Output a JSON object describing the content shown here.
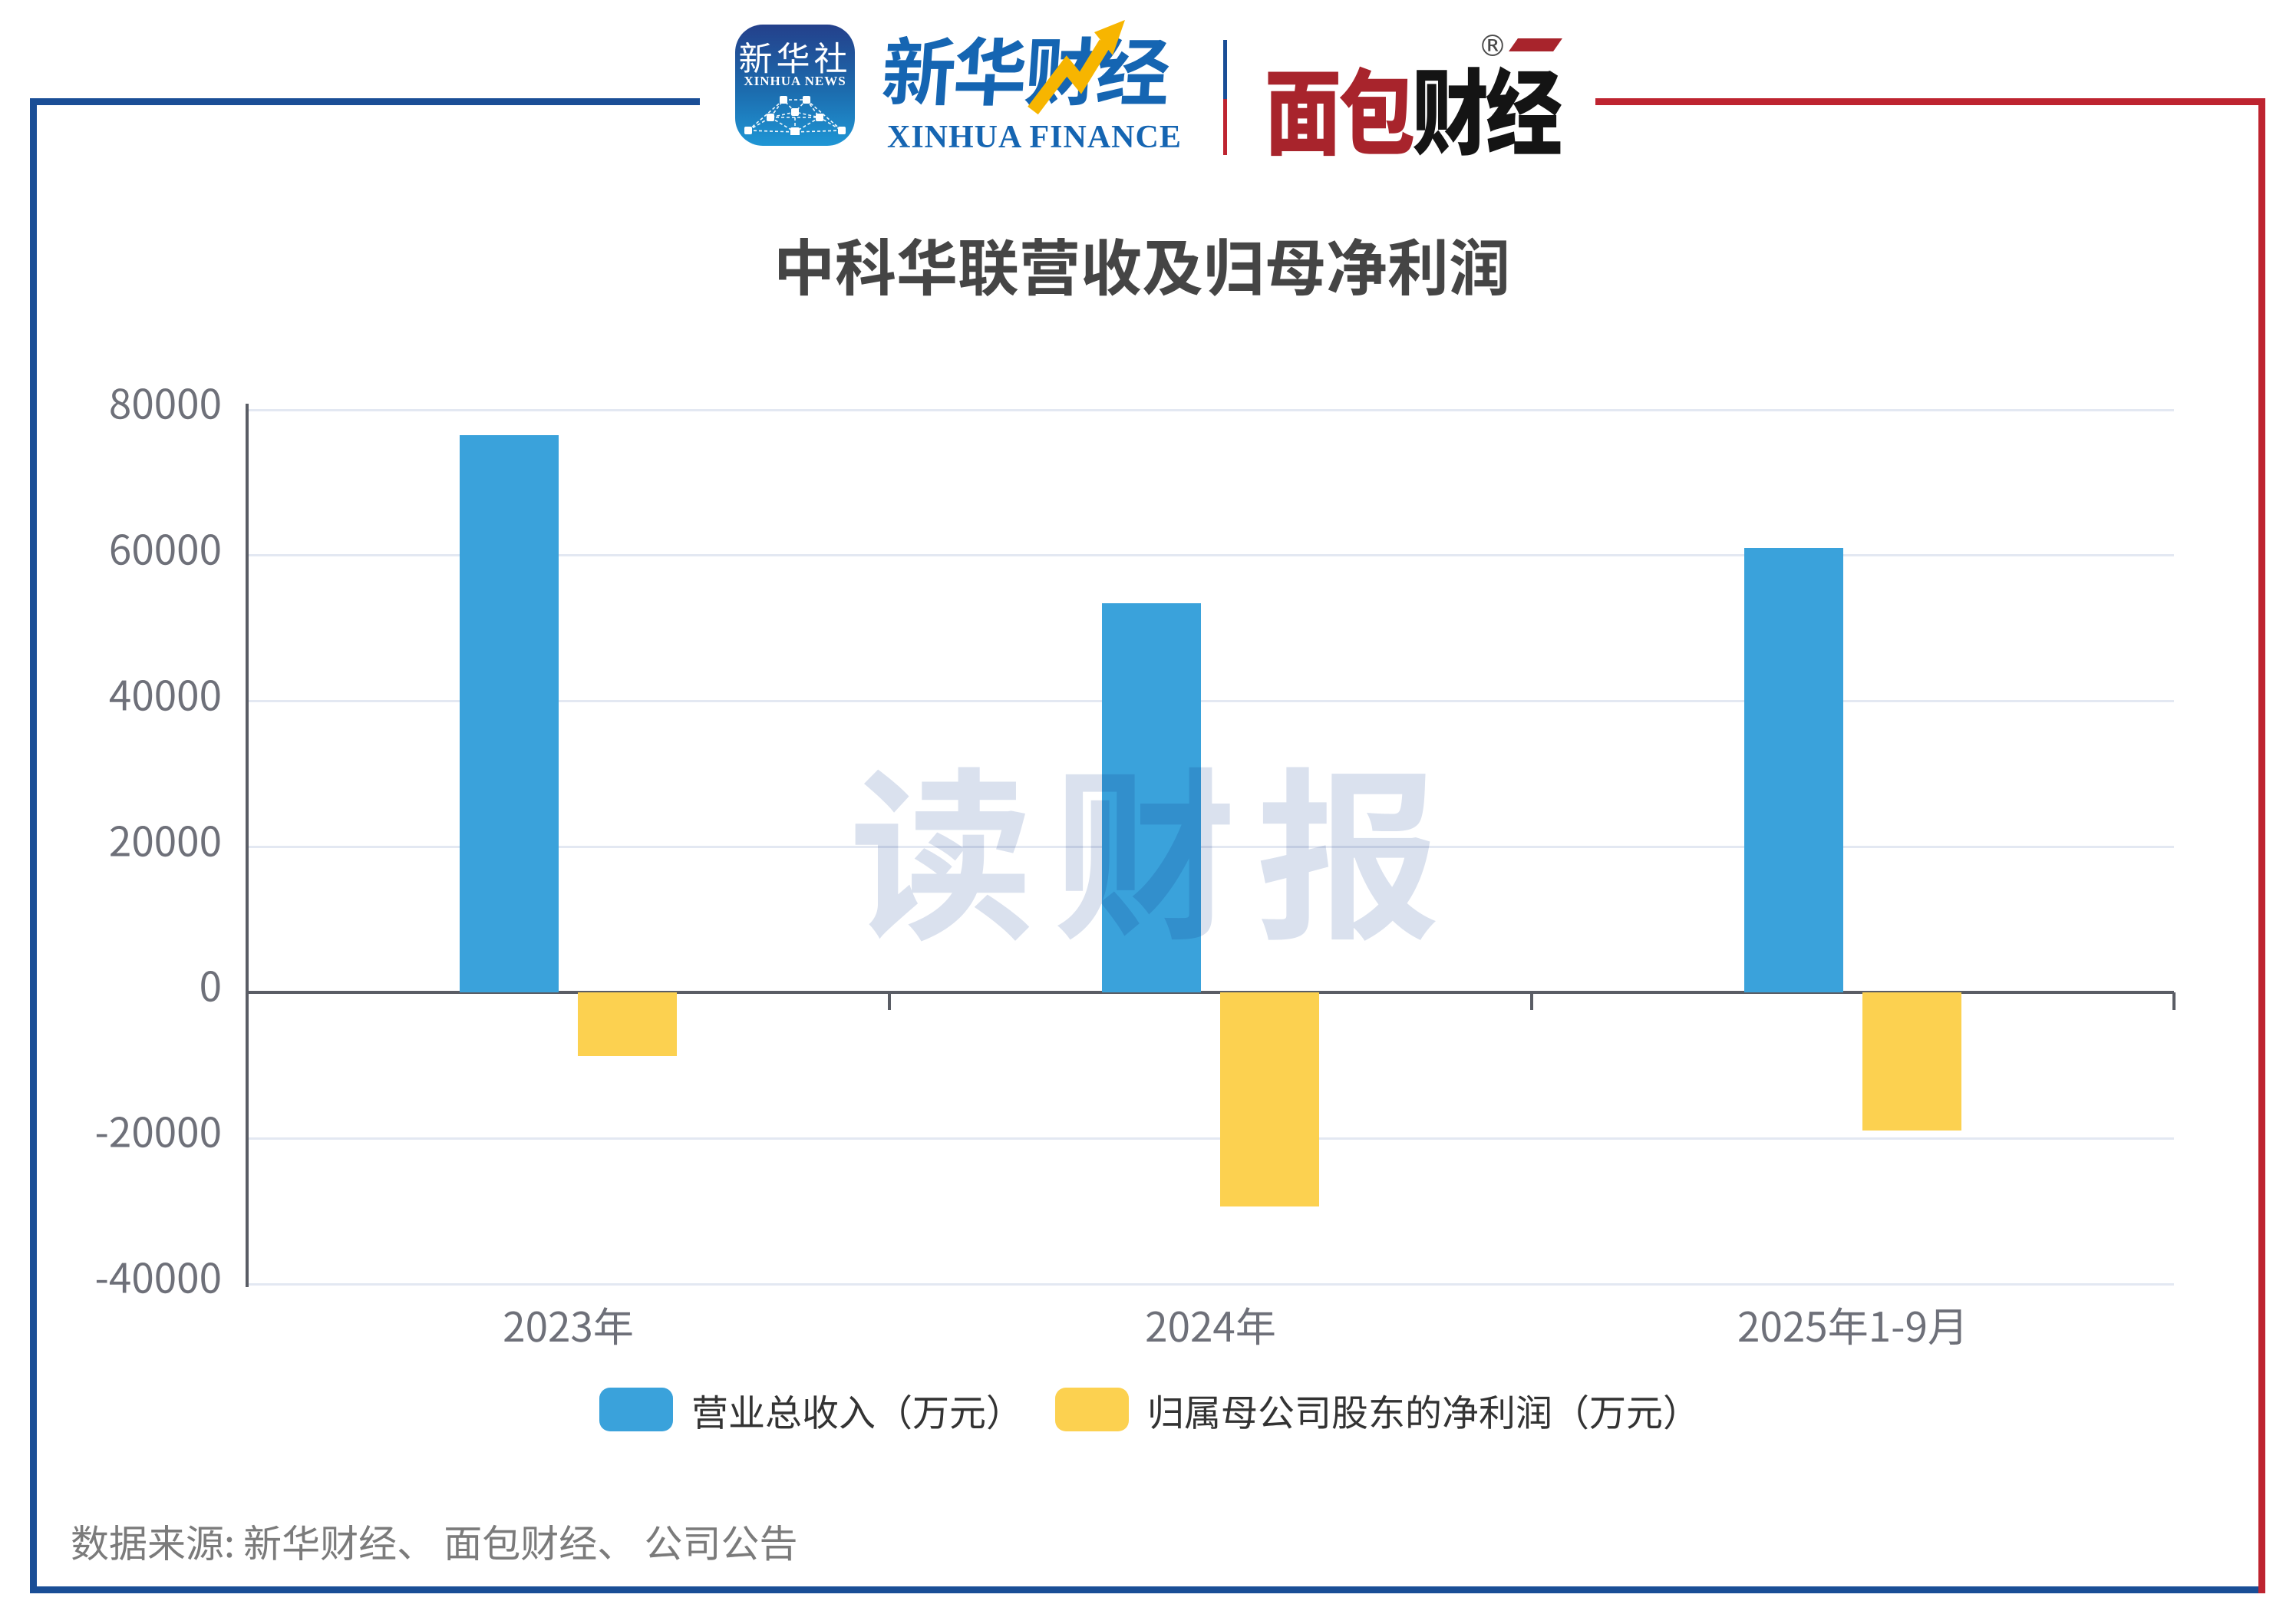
{
  "header": {
    "xinhua_news_icon": {
      "cn": "新华社",
      "en": "XINHUA NEWS"
    },
    "xinhua_finance": {
      "cn": "新华财经",
      "en": "XINHUA FINANCE"
    },
    "bread_finance": {
      "red_part": "面包",
      "black_part": "财经",
      "registered_mark": "®"
    }
  },
  "colors": {
    "frame_blue": "#1a4e96",
    "frame_red": "#be2430",
    "logo_blue": "#1565b2",
    "logo_red": "#a8242c",
    "logo_black": "#141414",
    "arrow_gold": "#f7b500",
    "revenue_bar": "#3aa2db",
    "profit_bar": "#fcd150"
  },
  "chart_data": {
    "type": "bar",
    "title": "中科华联营收及归母净利润",
    "categories": [
      "2023年",
      "2024年",
      "2025年1-9月"
    ],
    "series": [
      {
        "key": "revenue",
        "name": "营业总收入（万元）",
        "color": "#3aa2db",
        "values": [
          76500,
          53400,
          61000
        ]
      },
      {
        "key": "net-profit",
        "name": "归属母公司股东的净利润（万元）",
        "color": "#fcd150",
        "values": [
          -8700,
          -29400,
          -18900
        ]
      }
    ],
    "ylabel": "",
    "xlabel": "",
    "ylim": [
      -40000,
      80000
    ],
    "ytick_interval": 20000,
    "grid": true,
    "legend_position": "bottom"
  },
  "watermark": {
    "text": "读财报"
  },
  "source_note": {
    "text": "数据来源: 新华财经、 面包财经、 公司公告"
  }
}
